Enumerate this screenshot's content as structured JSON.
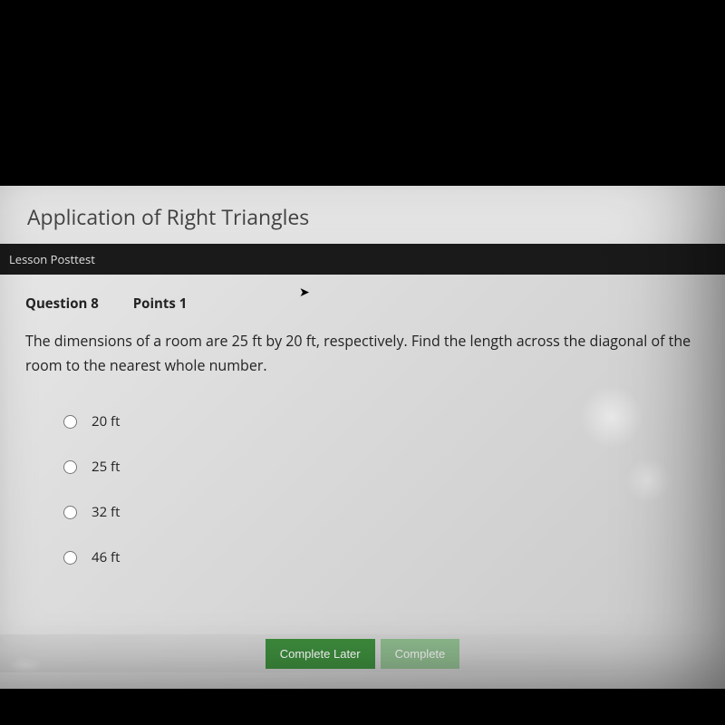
{
  "header": {
    "title": "Application of Right Triangles"
  },
  "lesson_bar": {
    "label": "Lesson Posttest"
  },
  "question": {
    "number_label": "Question 8",
    "points_label": "Points 1",
    "text": "The dimensions of a room are 25 ft by 20 ft, respectively. Find the length across the diagonal of the room to the nearest whole number."
  },
  "options": [
    {
      "label": "20 ft"
    },
    {
      "label": "25 ft"
    },
    {
      "label": "32 ft"
    },
    {
      "label": "46 ft"
    }
  ],
  "buttons": {
    "complete_later": "Complete Later",
    "complete": "Complete"
  },
  "colors": {
    "page_background": "#000000",
    "content_background": "#e0e0e0",
    "lesson_bar_background": "#1a1a1a",
    "lesson_bar_text": "#e0e0e0",
    "text_color": "#222222",
    "radio_border": "#777777",
    "btn_later_bg": "#3d8b3d",
    "btn_complete_bg": "#8db88d",
    "btn_text": "#ffffff"
  },
  "typography": {
    "header_fontsize": 23,
    "meta_fontsize": 15,
    "question_fontsize": 16,
    "option_fontsize": 15,
    "button_fontsize": 13
  }
}
